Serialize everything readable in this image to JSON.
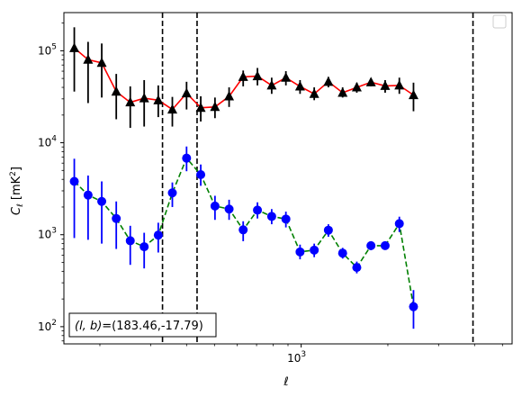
{
  "chart_data": {
    "type": "scatter",
    "title": "",
    "xlabel": "ℓ",
    "ylabel": "C_ℓ  [mK²]",
    "x_scale": "log",
    "y_scale": "log",
    "xlim": [
      150,
      5400
    ],
    "ylim": [
      65,
      260000
    ],
    "x_tick_labels": [
      {
        "value": 1000,
        "base": "10",
        "exp": "3"
      }
    ],
    "y_tick_labels": [
      {
        "value": 100,
        "base": "10",
        "exp": "2"
      },
      {
        "value": 1000,
        "base": "10",
        "exp": "3"
      },
      {
        "value": 10000,
        "base": "10",
        "exp": "4"
      },
      {
        "value": 100000,
        "base": "10",
        "exp": "5"
      }
    ],
    "x_minor_ticks": [
      200,
      300,
      400,
      500,
      600,
      700,
      800,
      900,
      2000,
      3000,
      4000,
      5000
    ],
    "vlines": [
      330,
      435,
      3950
    ],
    "legend": {
      "placement": "top-right",
      "entries": []
    },
    "annotation": {
      "text": "(l, b)=(183.46,-17.79)",
      "lhs": "(l, b)",
      "rhs": "=(183.46,-17.79)",
      "placement": "bottom-left"
    },
    "series": [
      {
        "color": "#000000",
        "line_color": "#ff0000",
        "line_style": "solid",
        "marker": "triangle",
        "points": [
          {
            "x": 163,
            "y": 107000,
            "lo": 36000,
            "hi": 180000
          },
          {
            "x": 182,
            "y": 80000,
            "lo": 27000,
            "hi": 125000
          },
          {
            "x": 203,
            "y": 74000,
            "lo": 31000,
            "hi": 120000
          },
          {
            "x": 228,
            "y": 36000,
            "lo": 18000,
            "hi": 56000
          },
          {
            "x": 255,
            "y": 27500,
            "lo": 14500,
            "hi": 41000
          },
          {
            "x": 285,
            "y": 30500,
            "lo": 15000,
            "hi": 48000
          },
          {
            "x": 319,
            "y": 29000,
            "lo": 19000,
            "hi": 42000
          },
          {
            "x": 357,
            "y": 23000,
            "lo": 15000,
            "hi": 31500
          },
          {
            "x": 400,
            "y": 34500,
            "lo": 23000,
            "hi": 46000
          },
          {
            "x": 448,
            "y": 24000,
            "lo": 17000,
            "hi": 32000
          },
          {
            "x": 502,
            "y": 24500,
            "lo": 18500,
            "hi": 31000
          },
          {
            "x": 562,
            "y": 32000,
            "lo": 24500,
            "hi": 40000
          },
          {
            "x": 629,
            "y": 52000,
            "lo": 41000,
            "hi": 61000
          },
          {
            "x": 705,
            "y": 53000,
            "lo": 42000,
            "hi": 65000
          },
          {
            "x": 790,
            "y": 42000,
            "lo": 34000,
            "hi": 51000
          },
          {
            "x": 885,
            "y": 51000,
            "lo": 42000,
            "hi": 60000
          },
          {
            "x": 991,
            "y": 41000,
            "lo": 34000,
            "hi": 48000
          },
          {
            "x": 1110,
            "y": 34000,
            "lo": 29000,
            "hi": 40000
          },
          {
            "x": 1243,
            "y": 46000,
            "lo": 40000,
            "hi": 52000
          },
          {
            "x": 1393,
            "y": 35000,
            "lo": 31000,
            "hi": 40000
          },
          {
            "x": 1560,
            "y": 40000,
            "lo": 35000,
            "hi": 45000
          },
          {
            "x": 1747,
            "y": 45500,
            "lo": 41000,
            "hi": 50000
          },
          {
            "x": 1957,
            "y": 41500,
            "lo": 35000,
            "hi": 48000
          },
          {
            "x": 2192,
            "y": 42000,
            "lo": 34000,
            "hi": 51000
          },
          {
            "x": 2455,
            "y": 33000,
            "lo": 22000,
            "hi": 45000
          }
        ]
      },
      {
        "color": "#0000ff",
        "line_color": "#008000",
        "line_style": "dashed",
        "marker": "circle",
        "points": [
          {
            "x": 163,
            "y": 3800,
            "lo": 920,
            "hi": 6700
          },
          {
            "x": 182,
            "y": 2700,
            "lo": 880,
            "hi": 4400
          },
          {
            "x": 203,
            "y": 2300,
            "lo": 800,
            "hi": 3800
          },
          {
            "x": 228,
            "y": 1500,
            "lo": 700,
            "hi": 2300
          },
          {
            "x": 255,
            "y": 860,
            "lo": 470,
            "hi": 1250
          },
          {
            "x": 285,
            "y": 740,
            "lo": 430,
            "hi": 1050
          },
          {
            "x": 319,
            "y": 990,
            "lo": 640,
            "hi": 1350
          },
          {
            "x": 357,
            "y": 2850,
            "lo": 2000,
            "hi": 3700
          },
          {
            "x": 400,
            "y": 6800,
            "lo": 4900,
            "hi": 9100
          },
          {
            "x": 448,
            "y": 4500,
            "lo": 3400,
            "hi": 5800
          },
          {
            "x": 502,
            "y": 2050,
            "lo": 1450,
            "hi": 2650
          },
          {
            "x": 562,
            "y": 1900,
            "lo": 1450,
            "hi": 2400
          },
          {
            "x": 629,
            "y": 1130,
            "lo": 850,
            "hi": 1400
          },
          {
            "x": 705,
            "y": 1850,
            "lo": 1500,
            "hi": 2250
          },
          {
            "x": 790,
            "y": 1580,
            "lo": 1300,
            "hi": 1900
          },
          {
            "x": 885,
            "y": 1480,
            "lo": 1200,
            "hi": 1780
          },
          {
            "x": 991,
            "y": 650,
            "lo": 540,
            "hi": 780
          },
          {
            "x": 1110,
            "y": 680,
            "lo": 570,
            "hi": 800
          },
          {
            "x": 1243,
            "y": 1120,
            "lo": 950,
            "hi": 1300
          },
          {
            "x": 1393,
            "y": 630,
            "lo": 550,
            "hi": 720
          },
          {
            "x": 1560,
            "y": 440,
            "lo": 380,
            "hi": 510
          },
          {
            "x": 1747,
            "y": 760,
            "lo": 680,
            "hi": 850
          },
          {
            "x": 1957,
            "y": 760,
            "lo": 690,
            "hi": 840
          },
          {
            "x": 2192,
            "y": 1320,
            "lo": 1070,
            "hi": 1570
          },
          {
            "x": 2455,
            "y": 165,
            "lo": 95,
            "hi": 250
          }
        ]
      }
    ]
  }
}
